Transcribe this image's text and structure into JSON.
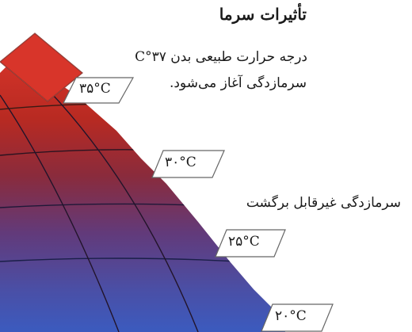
{
  "title": "تأثیرات سرما",
  "annotations": {
    "body_temperature": "درجه حرارت طبیعی بدن ۳۷°C",
    "hypothermia_start": "سرمازدگی آغاز می‌شود.",
    "irreversible": "سرمازدگی غیرقابل برگشت"
  },
  "temperature_labels": [
    "۳۵°C",
    "۳۰°C",
    "۲۵°C",
    "۲۰°C"
  ],
  "colors": {
    "band_1": "#d8352a",
    "band_2": "#b82a22",
    "band_3": "#8a2b3c",
    "band_4": "#623a7a",
    "band_5": "#4a4fa6",
    "band_6": "#3b5bbf",
    "tag_fill": "#ffffff",
    "tag_stroke": "#555555"
  }
}
